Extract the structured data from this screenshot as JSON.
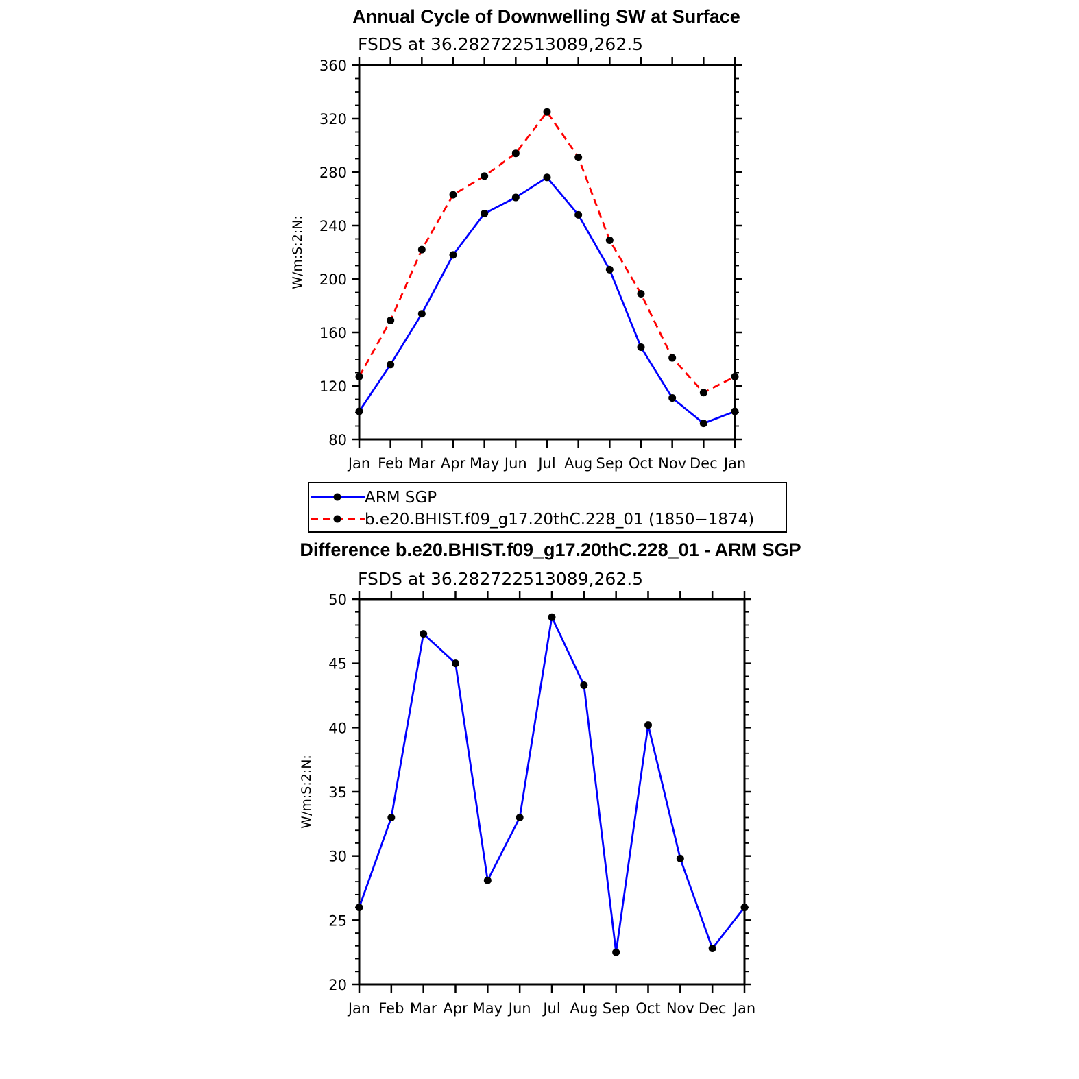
{
  "chart_data": [
    {
      "type": "line",
      "title": "Annual Cycle of Downwelling SW at Surface",
      "subtitle": "FSDS at 36.282722513089,262.5",
      "ylabel": "W/m:S:2:N:",
      "xlabel": "",
      "categories": [
        "Jan",
        "Feb",
        "Mar",
        "Apr",
        "May",
        "Jun",
        "Jul",
        "Aug",
        "Sep",
        "Oct",
        "Nov",
        "Dec",
        "Jan"
      ],
      "ylim": [
        80,
        360
      ],
      "yticks": [
        80,
        120,
        160,
        200,
        240,
        280,
        320,
        360
      ],
      "grid": false,
      "series": [
        {
          "name": "ARM SGP",
          "color": "#0000ff",
          "style": "solid",
          "values": [
            101,
            136,
            174,
            218,
            249,
            261,
            276,
            248,
            207,
            149,
            111,
            92,
            101
          ]
        },
        {
          "name": "b.e20.BHIST.f09_g17.20thC.228_01 (1850−1874)",
          "color": "#ff0000",
          "style": "dashed",
          "values": [
            127,
            169,
            222,
            263,
            277,
            294,
            325,
            291,
            229,
            189,
            141,
            115,
            127
          ]
        }
      ],
      "legend": "bottom"
    },
    {
      "type": "line",
      "title": "Difference b.e20.BHIST.f09_g17.20thC.228_01 - ARM SGP",
      "subtitle": "FSDS at 36.282722513089,262.5",
      "ylabel": "W/m:S:2:N:",
      "xlabel": "",
      "categories": [
        "Jan",
        "Feb",
        "Mar",
        "Apr",
        "May",
        "Jun",
        "Jul",
        "Aug",
        "Sep",
        "Oct",
        "Nov",
        "Dec",
        "Jan"
      ],
      "ylim": [
        20,
        50
      ],
      "yticks": [
        20,
        25,
        30,
        35,
        40,
        45,
        50
      ],
      "grid": false,
      "series": [
        {
          "color": "#0000ff",
          "style": "solid",
          "values": [
            26.0,
            33.0,
            47.3,
            45.0,
            28.1,
            33.0,
            48.6,
            43.3,
            22.5,
            40.2,
            29.8,
            22.8,
            26.0
          ]
        }
      ]
    }
  ]
}
